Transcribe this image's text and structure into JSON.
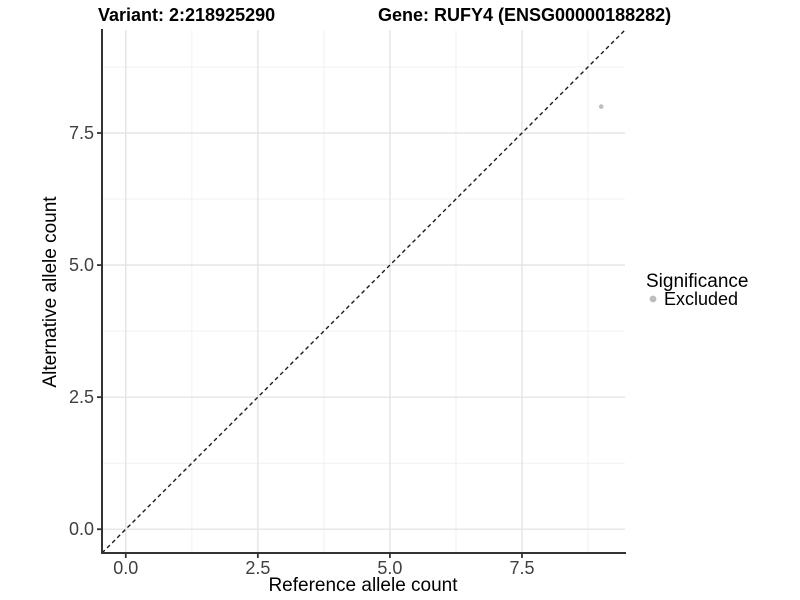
{
  "chart_data": {
    "type": "scatter",
    "title_left": "Variant: 2:218925290",
    "title_right": "Gene: RUFY4 (ENSG00000188282)",
    "xlabel": "Reference allele count",
    "ylabel": "Alternative allele count",
    "xlim": [
      -0.45,
      9.45
    ],
    "ylim": [
      -0.45,
      9.45
    ],
    "xticks": [
      {
        "value": 0,
        "label": "0.0"
      },
      {
        "value": 2.5,
        "label": "2.5"
      },
      {
        "value": 5,
        "label": "5.0"
      },
      {
        "value": 7.5,
        "label": "7.5"
      }
    ],
    "yticks": [
      {
        "value": 0,
        "label": "0.0"
      },
      {
        "value": 2.5,
        "label": "2.5"
      },
      {
        "value": 5,
        "label": "5.0"
      },
      {
        "value": 7.5,
        "label": "7.5"
      }
    ],
    "minor_breaks": [
      1.25,
      3.75,
      6.25,
      8.75
    ],
    "grid": {
      "major": true,
      "minor": true
    },
    "identity_line": {
      "slope": 1,
      "intercept": 0,
      "style": "dashed",
      "color": "#1a1a1a"
    },
    "points": [
      {
        "x": 9,
        "y": 8,
        "significance": "Excluded"
      }
    ],
    "legend": {
      "title": "Significance",
      "position": "right",
      "entries": [
        {
          "label": "Excluded",
          "color": "#bdbdbd"
        }
      ]
    },
    "colors": {
      "point_excluded": "#bdbdbd",
      "axis": "#333333",
      "major_grid": "#e4e4e4",
      "minor_grid": "#f1f1f1",
      "tick_label": "#404040",
      "background": "#ffffff"
    }
  }
}
